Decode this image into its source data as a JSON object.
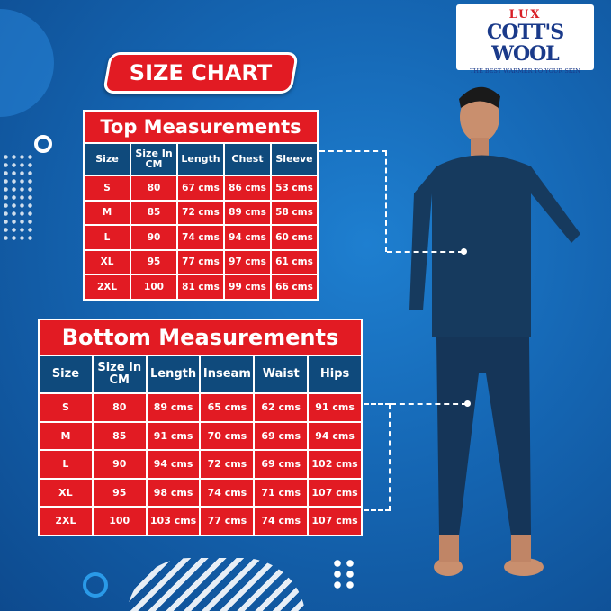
{
  "logo": {
    "lux": "LUX",
    "brand": "COTT'S WOOL",
    "tagline": "THE BEST WARMER TO YOUR SKIN"
  },
  "badge": "SIZE CHART",
  "top": {
    "title": "Top Measurements",
    "headers": [
      "Size",
      "Size In CM",
      "Length",
      "Chest",
      "Sleeve"
    ],
    "rows": [
      [
        "S",
        "80",
        "67 cms",
        "86 cms",
        "53 cms"
      ],
      [
        "M",
        "85",
        "72 cms",
        "89 cms",
        "58 cms"
      ],
      [
        "L",
        "90",
        "74 cms",
        "94 cms",
        "60 cms"
      ],
      [
        "XL",
        "95",
        "77 cms",
        "97 cms",
        "61 cms"
      ],
      [
        "2XL",
        "100",
        "81 cms",
        "99 cms",
        "66 cms"
      ]
    ]
  },
  "bottom": {
    "title": "Bottom Measurements",
    "headers": [
      "Size",
      "Size In CM",
      "Length",
      "Inseam",
      "Waist",
      "Hips"
    ],
    "rows": [
      [
        "S",
        "80",
        "89 cms",
        "65 cms",
        "62 cms",
        "91 cms"
      ],
      [
        "M",
        "85",
        "91 cms",
        "70 cms",
        "69 cms",
        "94 cms"
      ],
      [
        "L",
        "90",
        "94 cms",
        "72 cms",
        "69 cms",
        "102 cms"
      ],
      [
        "XL",
        "95",
        "98 cms",
        "74 cms",
        "71 cms",
        "107 cms"
      ],
      [
        "2XL",
        "100",
        "103 cms",
        "77 cms",
        "74 cms",
        "107 cms"
      ]
    ]
  },
  "colors": {
    "red": "#e21b23",
    "navy": "#0f4a7c",
    "background": "#1566b3",
    "garment": "#163a5e"
  }
}
